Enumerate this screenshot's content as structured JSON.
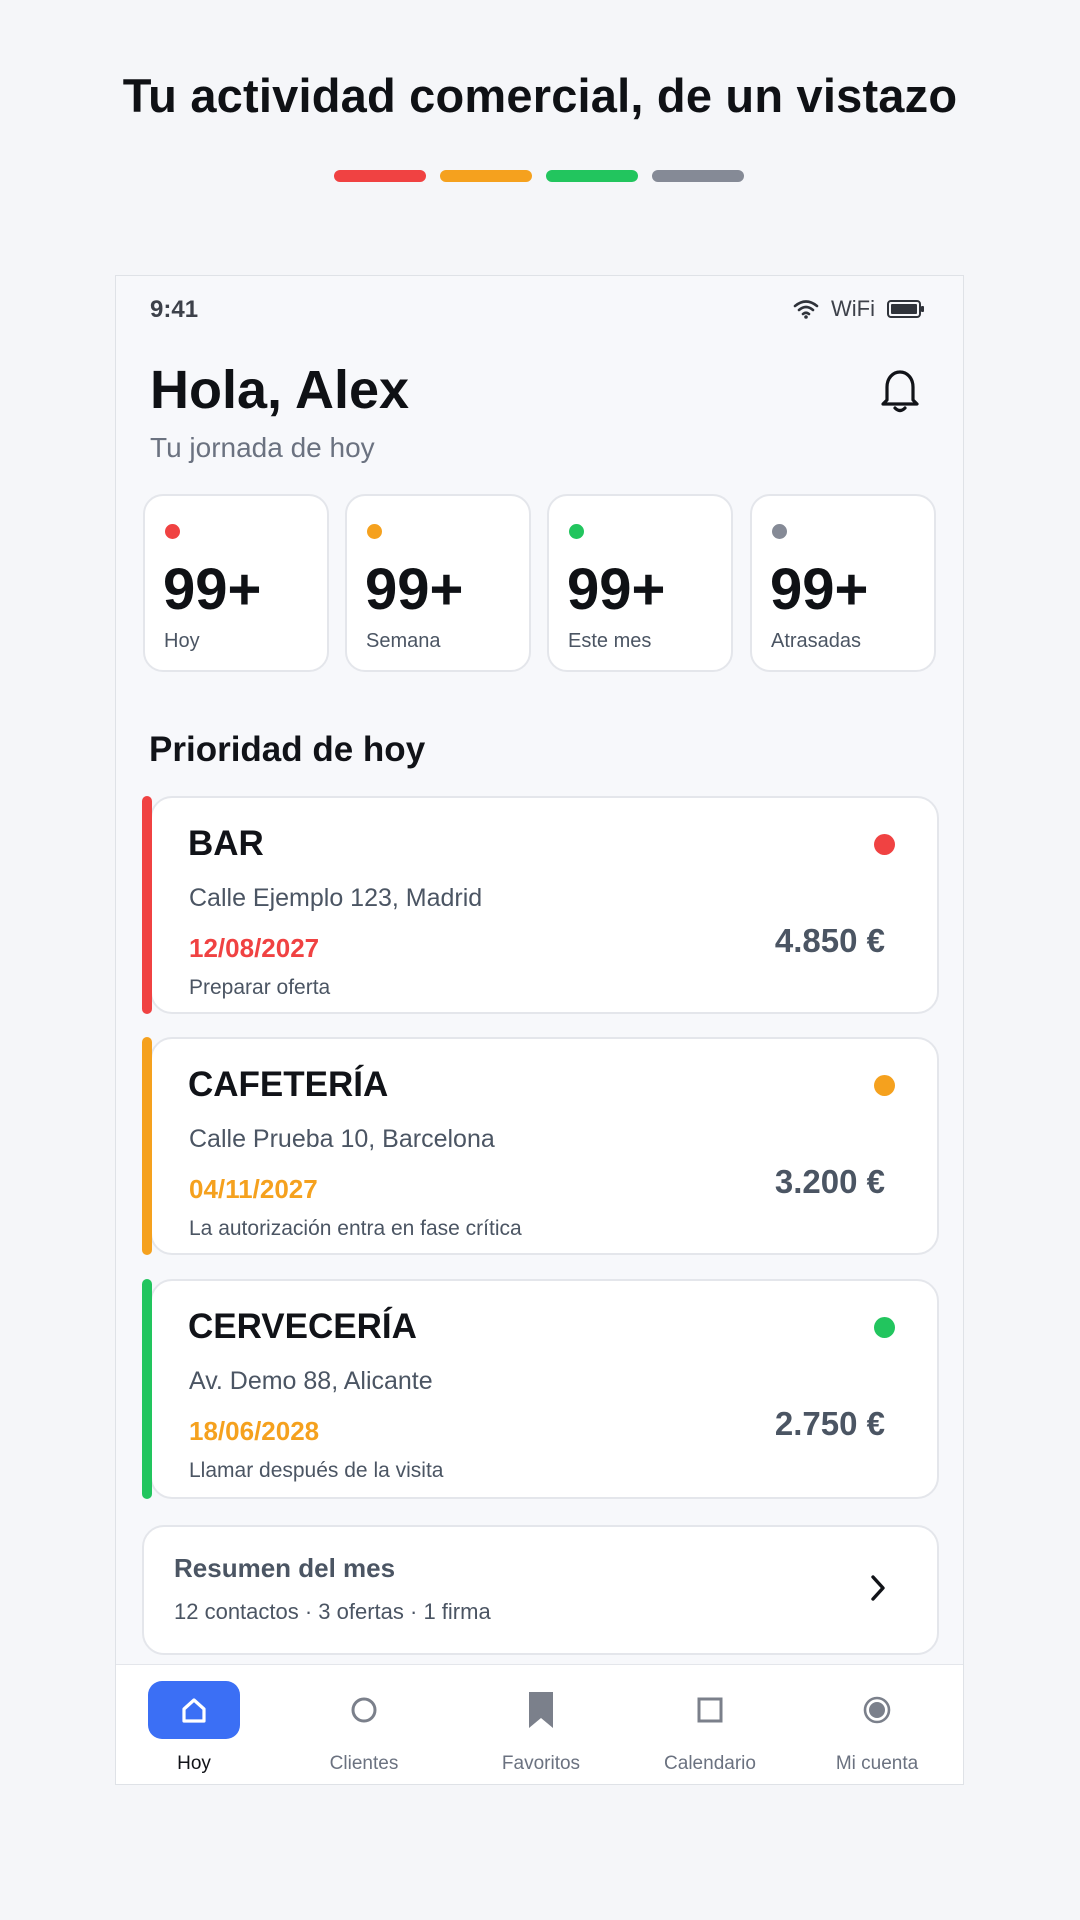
{
  "headline": "Tu actividad comercial, de un vistazo",
  "colors": {
    "red": "#f04242",
    "orange": "#f5a11e",
    "green": "#22c55e",
    "gray": "#858a96",
    "accent": "#3b6ff5"
  },
  "status_bar": {
    "time": "9:41",
    "wifi_label": "WiFi",
    "icons": [
      "wifi-icon",
      "battery-icon"
    ]
  },
  "header": {
    "greeting": "Hola, Alex",
    "subtitle": "Tu jornada de hoy",
    "icon": "bell-icon"
  },
  "stats": [
    {
      "value": "99+",
      "label": "Hoy",
      "color": "red"
    },
    {
      "value": "99+",
      "label": "Semana",
      "color": "orange"
    },
    {
      "value": "99+",
      "label": "Este mes",
      "color": "green"
    },
    {
      "value": "99+",
      "label": "Atrasadas",
      "color": "gray"
    }
  ],
  "priority": {
    "title": "Prioridad de hoy",
    "items": [
      {
        "name": "BAR",
        "address": "Calle Ejemplo 123, Madrid",
        "date": "12/08/2027",
        "note": "Preparar oferta",
        "amount": "4.850 €",
        "status": "red"
      },
      {
        "name": "CAFETERÍA",
        "address": "Calle Prueba 10, Barcelona",
        "date": "04/11/2027",
        "note": "La autorización entra en fase crítica",
        "amount": "3.200 €",
        "status": "orange"
      },
      {
        "name": "CERVECERÍA",
        "address": "Av. Demo 88, Alicante",
        "date": "18/06/2028",
        "note": "Llamar después de la visita",
        "amount": "2.750 €",
        "status": "green"
      }
    ]
  },
  "summary": {
    "title": "Resumen del mes",
    "info": "12 contactos · 3 ofertas · 1 firma",
    "icon": "chevron-right-icon"
  },
  "nav": {
    "items": [
      {
        "label": "Hoy",
        "icon": "home-icon",
        "active": true
      },
      {
        "label": "Clientes",
        "icon": "circle-icon"
      },
      {
        "label": "Favoritos",
        "icon": "bookmark-icon"
      },
      {
        "label": "Calendario",
        "icon": "square-icon"
      },
      {
        "label": "Mi cuenta",
        "icon": "account-icon"
      }
    ]
  }
}
